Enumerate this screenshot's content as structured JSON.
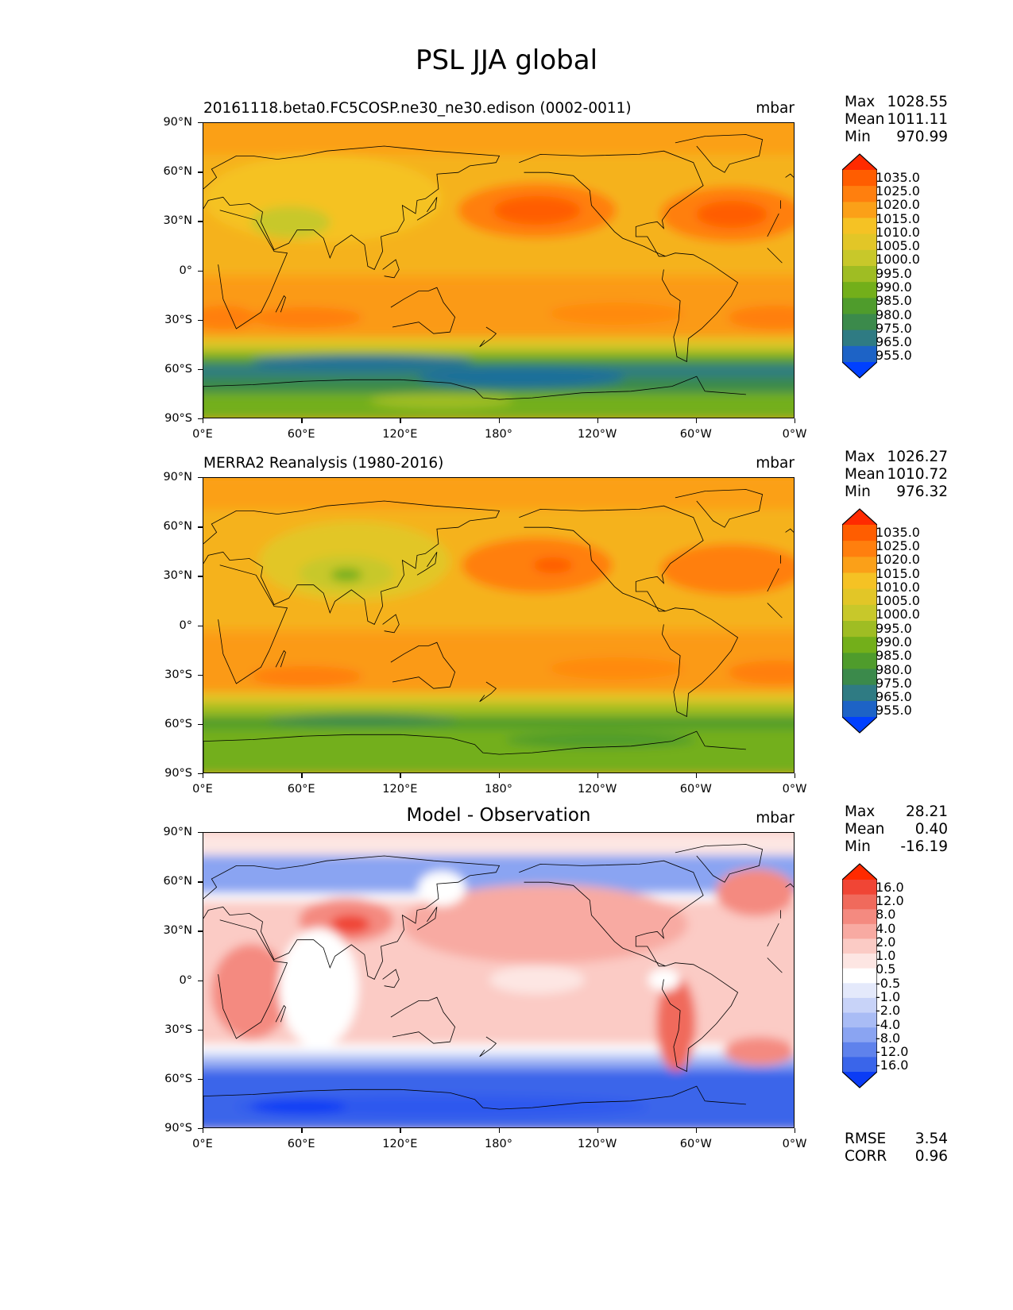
{
  "figure": {
    "title": "PSL JJA global"
  },
  "axes": {
    "y_ticks": [
      "90°N",
      "60°N",
      "30°N",
      "0°",
      "30°S",
      "60°S",
      "90°S"
    ],
    "x_ticks": [
      "0°E",
      "60°E",
      "120°E",
      "180°",
      "120°W",
      "60°W",
      "0°W"
    ]
  },
  "panels": [
    {
      "title": "20161118.beta0.FC5COSP.ne30_ne30.edison (0002-0011)",
      "title_style": "left",
      "units": "mbar",
      "stats": [
        {
          "label": "Max",
          "value": "1028.55"
        },
        {
          "label": "Mean",
          "value": "1011.11"
        },
        {
          "label": "Min",
          "value": "970.99"
        }
      ],
      "colorbar": {
        "labels": [
          "1035.0",
          "1025.0",
          "1020.0",
          "1015.0",
          "1010.0",
          "1005.0",
          "1000.0",
          "995.0",
          "990.0",
          "985.0",
          "980.0",
          "975.0",
          "965.0",
          "955.0"
        ],
        "colors": [
          "#ff2a00",
          "#ff5d00",
          "#ff7f0e",
          "#fba018",
          "#f5c224",
          "#e2c627",
          "#c8c82a",
          "#9fbd23",
          "#73af1a",
          "#4f9c2c",
          "#3b8a4b",
          "#2f7b83",
          "#1d63c6",
          "#0040ff"
        ]
      }
    },
    {
      "title": "MERRA2 Reanalysis (1980-2016)",
      "title_style": "left",
      "units": "mbar",
      "stats": [
        {
          "label": "Max",
          "value": "1026.27"
        },
        {
          "label": "Mean",
          "value": "1010.72"
        },
        {
          "label": "Min",
          "value": "976.32"
        }
      ],
      "colorbar": {
        "labels": [
          "1035.0",
          "1025.0",
          "1020.0",
          "1015.0",
          "1010.0",
          "1005.0",
          "1000.0",
          "995.0",
          "990.0",
          "985.0",
          "980.0",
          "975.0",
          "965.0",
          "955.0"
        ],
        "colors": [
          "#ff2a00",
          "#ff5d00",
          "#ff7f0e",
          "#fba018",
          "#f5c224",
          "#e2c627",
          "#c8c82a",
          "#9fbd23",
          "#73af1a",
          "#4f9c2c",
          "#3b8a4b",
          "#2f7b83",
          "#1d63c6",
          "#0040ff"
        ]
      }
    },
    {
      "title": "Model - Observation",
      "title_style": "center",
      "units": "mbar",
      "stats": [
        {
          "label": "Max",
          "value": "28.21"
        },
        {
          "label": "Mean",
          "value": "0.40"
        },
        {
          "label": "Min",
          "value": "-16.19"
        }
      ],
      "fit": [
        {
          "label": "RMSE",
          "value": "3.54"
        },
        {
          "label": "CORR",
          "value": "0.96"
        }
      ],
      "colorbar": {
        "labels": [
          "16.0",
          "12.0",
          "8.0",
          "4.0",
          "2.0",
          "1.0",
          "0.5",
          "-0.5",
          "-1.0",
          "-2.0",
          "-4.0",
          "-8.0",
          "-12.0",
          "-16.0"
        ],
        "colors": [
          "#ff2a00",
          "#f04535",
          "#f06a5c",
          "#f48a80",
          "#f8aaa2",
          "#fbcbc5",
          "#fde6e3",
          "#ffffff",
          "#e4e9fb",
          "#c8d3f8",
          "#a9bcf5",
          "#8aa4f2",
          "#5f82ec",
          "#3a65ea",
          "#0b3cf5"
        ]
      }
    }
  ],
  "chart_data": [
    {
      "type": "heatmap",
      "title": "20161118.beta0.FC5COSP.ne30_ne30.edison (0002-0011)",
      "units": "mbar",
      "xlabel": "",
      "ylabel": "",
      "x_ticks": [
        "0°E",
        "60°E",
        "120°E",
        "180°",
        "120°W",
        "60°W",
        "0°W"
      ],
      "y_ticks": [
        "90°N",
        "60°N",
        "30°N",
        "0°",
        "30°S",
        "60°S",
        "90°S"
      ],
      "levels": [
        955,
        965,
        975,
        980,
        985,
        990,
        995,
        1000,
        1005,
        1010,
        1015,
        1020,
        1025,
        1035
      ],
      "max": 1028.55,
      "mean": 1011.11,
      "min": 970.99
    },
    {
      "type": "heatmap",
      "title": "MERRA2 Reanalysis (1980-2016)",
      "units": "mbar",
      "xlabel": "",
      "ylabel": "",
      "x_ticks": [
        "0°E",
        "60°E",
        "120°E",
        "180°",
        "120°W",
        "60°W",
        "0°W"
      ],
      "y_ticks": [
        "90°N",
        "60°N",
        "30°N",
        "0°",
        "30°S",
        "60°S",
        "90°S"
      ],
      "levels": [
        955,
        965,
        975,
        980,
        985,
        990,
        995,
        1000,
        1005,
        1010,
        1015,
        1020,
        1025,
        1035
      ],
      "max": 1026.27,
      "mean": 1010.72,
      "min": 976.32
    },
    {
      "type": "heatmap",
      "title": "Model - Observation",
      "units": "mbar",
      "xlabel": "",
      "ylabel": "",
      "x_ticks": [
        "0°E",
        "60°E",
        "120°E",
        "180°",
        "120°W",
        "60°W",
        "0°W"
      ],
      "y_ticks": [
        "90°N",
        "60°N",
        "30°N",
        "0°",
        "30°S",
        "60°S",
        "90°S"
      ],
      "levels": [
        -16,
        -12,
        -8,
        -4,
        -2,
        -1,
        -0.5,
        0.5,
        1,
        2,
        4,
        8,
        12,
        16
      ],
      "max": 28.21,
      "mean": 0.4,
      "min": -16.19,
      "rmse": 3.54,
      "corr": 0.96
    }
  ]
}
